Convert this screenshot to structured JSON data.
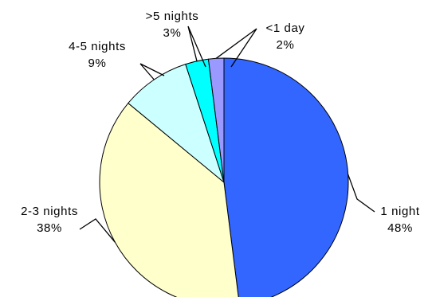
{
  "chart_data": {
    "type": "pie",
    "title": "",
    "slices": [
      {
        "label": "1 night",
        "value": 48,
        "value_label": "48%",
        "color": "#3366ff"
      },
      {
        "label": "2-3 nights",
        "value": 38,
        "value_label": "38%",
        "color": "#ffffcc"
      },
      {
        "label": "4-5 nights",
        "value": 9,
        "value_label": "9%",
        "color": "#ccffff"
      },
      {
        "label": ">5 nights",
        "value": 3,
        "value_label": "3%",
        "color": "#00ffff"
      },
      {
        "label": "<1 day",
        "value": 2,
        "value_label": "2%",
        "color": "#9999ff"
      }
    ],
    "start_angle": "12 o'clock",
    "direction": "clockwise",
    "legend": "none"
  }
}
